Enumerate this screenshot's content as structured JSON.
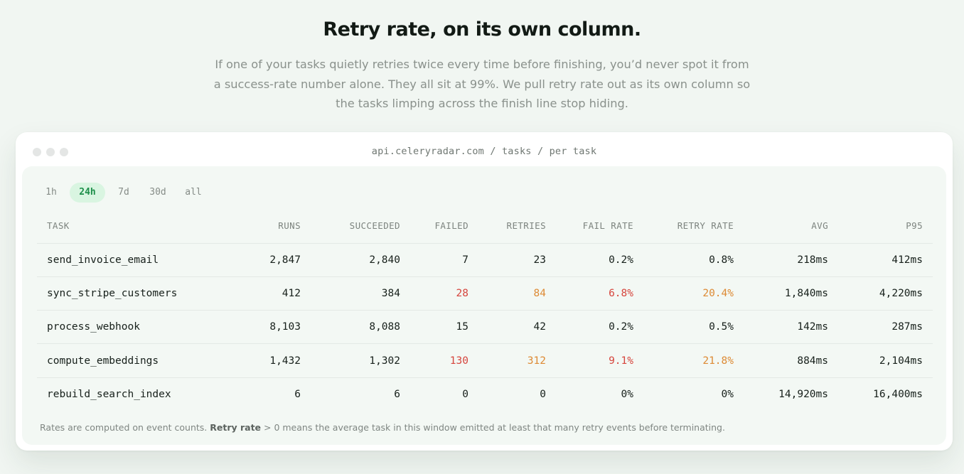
{
  "hero": {
    "title": "Retry rate, on its own column.",
    "subtitle": "If one of your tasks quietly retries twice every time before finishing, you’d never spot it from a success-rate number alone. They all sit at 99%. We pull retry rate out as its own column so the tasks limping across the finish line stop hiding."
  },
  "window": {
    "url": "api.celeryradar.com / tasks / per task"
  },
  "time_ranges": [
    {
      "label": "1h",
      "active": false
    },
    {
      "label": "24h",
      "active": true
    },
    {
      "label": "7d",
      "active": false
    },
    {
      "label": "30d",
      "active": false
    },
    {
      "label": "all",
      "active": false
    }
  ],
  "table": {
    "headers": [
      "TASK",
      "RUNS",
      "SUCCEEDED",
      "FAILED",
      "RETRIES",
      "FAIL RATE",
      "RETRY RATE",
      "AVG",
      "P95"
    ],
    "rows": [
      {
        "task": "send_invoice_email",
        "runs": "2,847",
        "succeeded": "2,840",
        "failed": "7",
        "retries": "23",
        "fail_rate": "0.2%",
        "retry_rate": "0.8%",
        "avg": "218ms",
        "p95": "412ms",
        "highlight": false
      },
      {
        "task": "sync_stripe_customers",
        "runs": "412",
        "succeeded": "384",
        "failed": "28",
        "retries": "84",
        "fail_rate": "6.8%",
        "retry_rate": "20.4%",
        "avg": "1,840ms",
        "p95": "4,220ms",
        "highlight": true
      },
      {
        "task": "process_webhook",
        "runs": "8,103",
        "succeeded": "8,088",
        "failed": "15",
        "retries": "42",
        "fail_rate": "0.2%",
        "retry_rate": "0.5%",
        "avg": "142ms",
        "p95": "287ms",
        "highlight": false
      },
      {
        "task": "compute_embeddings",
        "runs": "1,432",
        "succeeded": "1,302",
        "failed": "130",
        "retries": "312",
        "fail_rate": "9.1%",
        "retry_rate": "21.8%",
        "avg": "884ms",
        "p95": "2,104ms",
        "highlight": true
      },
      {
        "task": "rebuild_search_index",
        "runs": "6",
        "succeeded": "6",
        "failed": "0",
        "retries": "0",
        "fail_rate": "0%",
        "retry_rate": "0%",
        "avg": "14,920ms",
        "p95": "16,400ms",
        "highlight": false
      }
    ]
  },
  "footnote": {
    "before": "Rates are computed on event counts. ",
    "bold": "Retry rate",
    "after": " > 0 means the average task in this window emitted at least that many retry events before terminating."
  },
  "colors": {
    "fail_highlight": "#d6453d",
    "retry_highlight": "#dd8a34",
    "active_range": "#1e8f4a"
  }
}
